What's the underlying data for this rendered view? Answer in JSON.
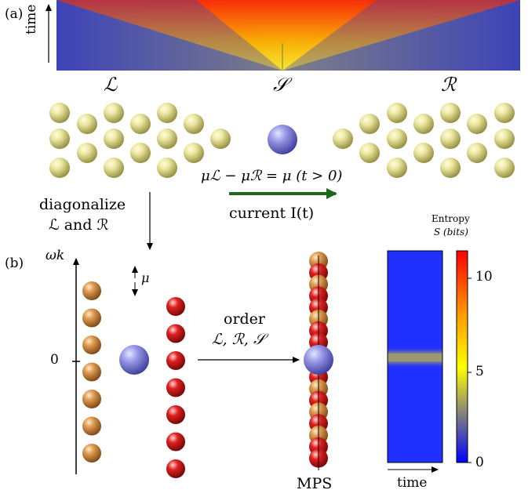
{
  "panel_a": {
    "label": "(a)",
    "time_label": "time",
    "left_label": "ℒ",
    "center_label": "𝒮",
    "right_label": "ℛ",
    "bias_equation": "μℒ − μℛ = μ (t > 0)",
    "current_label": "current I(t)",
    "arrow_color": "#1b6a1b"
  },
  "transition": {
    "line1": "diagonalize",
    "line2": "ℒ and ℛ"
  },
  "panel_b": {
    "label": "(b)",
    "axis_label": "ωk",
    "zero_label": "0",
    "mu_label": "μ",
    "order_line1": "order",
    "order_line2": "ℒ, ℛ, 𝒮",
    "mps_label": "MPS"
  },
  "entropy_plot": {
    "title_line1": "Entropy",
    "title_line2": "S (bits)",
    "x_label": "time",
    "colorbar_ticks": [
      "10",
      "5",
      "0"
    ]
  },
  "colors": {
    "lead_sphere": "#d8d37a",
    "dot_sphere": "#7f7fe0",
    "orange_sphere": "#d0883a",
    "red_sphere": "#d81818",
    "heat_background": "#2030ff"
  }
}
